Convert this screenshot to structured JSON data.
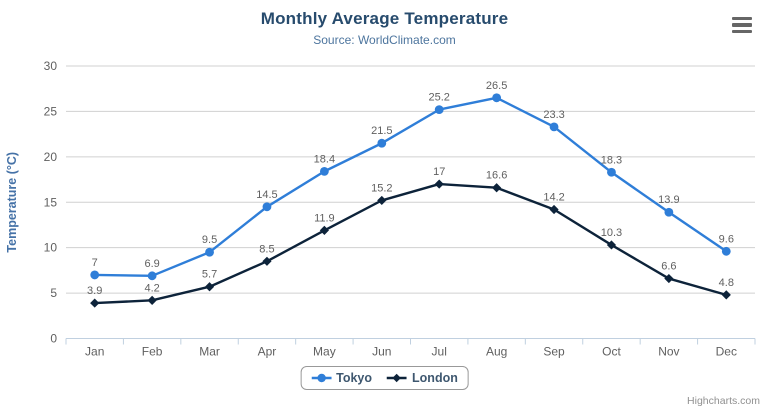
{
  "chart_data": {
    "type": "line",
    "title": "Monthly Average Temperature",
    "subtitle": "Source: WorldClimate.com",
    "categories": [
      "Jan",
      "Feb",
      "Mar",
      "Apr",
      "May",
      "Jun",
      "Jul",
      "Aug",
      "Sep",
      "Oct",
      "Nov",
      "Dec"
    ],
    "series": [
      {
        "name": "Tokyo",
        "color": "#2f7ed8",
        "marker": "circle",
        "values": [
          7,
          6.9,
          9.5,
          14.5,
          18.4,
          21.5,
          25.2,
          26.5,
          23.3,
          18.3,
          13.9,
          9.6
        ]
      },
      {
        "name": "London",
        "color": "#0d233a",
        "marker": "diamond",
        "values": [
          3.9,
          4.2,
          5.7,
          8.5,
          11.9,
          15.2,
          17,
          16.6,
          14.2,
          10.3,
          6.6,
          4.8
        ]
      }
    ],
    "xlabel": "",
    "ylabel": "Temperature (°C)",
    "ylim": [
      0,
      30
    ],
    "ytick_step": 5,
    "grid": true,
    "data_labels": true,
    "legend_position": "bottom-center"
  },
  "credits": "Highcharts.com",
  "menu_icon": "hamburger-menu-icon",
  "colors": {
    "title": "#274b6d",
    "subtitle": "#4d759e",
    "axis_title": "#4572a7",
    "axis_labels": "#606060",
    "data_labels": "#606060",
    "grid": "#d0d0d0",
    "axis_line": "#c0d0e0",
    "legend_text": "#3E576F",
    "menu_icon": "#666666",
    "credits": "#909090"
  }
}
